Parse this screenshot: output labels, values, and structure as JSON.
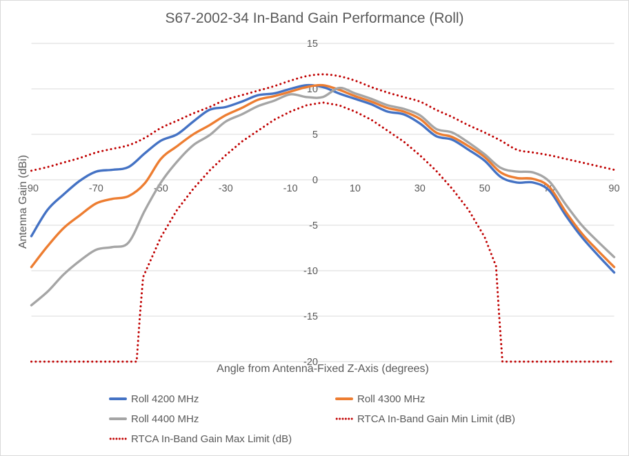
{
  "chart_data": {
    "type": "line",
    "title": "S67-2002-34 In-Band Gain Performance (Roll)",
    "xlabel": "Angle from Antenna-Fixed Z-Axis (degrees)",
    "ylabel": "Antenna Gain (dBi)",
    "xlim": [
      -90,
      90
    ],
    "ylim": [
      -20,
      15
    ],
    "x_ticks": [
      -90,
      -70,
      -50,
      -30,
      -10,
      10,
      30,
      50,
      70,
      90
    ],
    "y_ticks": [
      15,
      10,
      5,
      0,
      -5,
      -10,
      -15,
      -20
    ],
    "grid": "horizontal-only",
    "grid_color": "#d9d9d9",
    "text_color": "#595959",
    "legend_position": "bottom",
    "series": [
      {
        "id": "roll-4200",
        "name": "Roll 4200 MHz",
        "color": "#4472C4",
        "style": "solid",
        "smooth": true,
        "x": [
          -90,
          -85,
          -80,
          -75,
          -70,
          -65,
          -60,
          -55,
          -50,
          -45,
          -40,
          -35,
          -30,
          -25,
          -20,
          -15,
          -10,
          -5,
          0,
          5,
          10,
          15,
          20,
          25,
          30,
          35,
          40,
          45,
          50,
          55,
          60,
          65,
          70,
          75,
          80,
          85,
          90
        ],
        "y": [
          -6.2,
          -3.3,
          -1.6,
          -0.1,
          0.9,
          1.1,
          1.4,
          2.9,
          4.3,
          5.0,
          6.4,
          7.7,
          8.0,
          8.6,
          9.3,
          9.5,
          10.0,
          10.4,
          10.2,
          9.5,
          8.9,
          8.3,
          7.5,
          7.2,
          6.2,
          4.8,
          4.4,
          3.3,
          2.1,
          0.3,
          -0.3,
          -0.3,
          -1.2,
          -3.9,
          -6.3,
          -8.3,
          -10.2
        ]
      },
      {
        "id": "roll-4300",
        "name": "Roll 4300 MHz",
        "color": "#ED7D31",
        "style": "solid",
        "smooth": true,
        "x": [
          -90,
          -85,
          -80,
          -75,
          -70,
          -65,
          -60,
          -55,
          -50,
          -45,
          -40,
          -35,
          -30,
          -25,
          -20,
          -15,
          -10,
          -5,
          0,
          5,
          10,
          15,
          20,
          25,
          30,
          35,
          40,
          45,
          50,
          55,
          60,
          65,
          70,
          75,
          80,
          85,
          90
        ],
        "y": [
          -9.6,
          -7.3,
          -5.3,
          -3.9,
          -2.6,
          -2.1,
          -1.8,
          -0.4,
          2.3,
          3.7,
          5.0,
          6.0,
          7.1,
          7.9,
          8.8,
          9.2,
          9.7,
          10.2,
          10.4,
          9.9,
          9.2,
          8.6,
          7.9,
          7.5,
          6.7,
          5.2,
          4.7,
          3.7,
          2.5,
          0.8,
          0.2,
          0.1,
          -0.8,
          -3.5,
          -5.9,
          -7.8,
          -9.6
        ]
      },
      {
        "id": "roll-4400",
        "name": "Roll 4400 MHz",
        "color": "#A5A5A5",
        "style": "solid",
        "smooth": true,
        "x": [
          -90,
          -85,
          -80,
          -75,
          -70,
          -65,
          -60,
          -55,
          -50,
          -45,
          -40,
          -35,
          -30,
          -25,
          -20,
          -15,
          -10,
          -5,
          0,
          5,
          10,
          15,
          20,
          25,
          30,
          35,
          40,
          45,
          50,
          55,
          60,
          65,
          70,
          75,
          80,
          85,
          90
        ],
        "y": [
          -13.8,
          -12.3,
          -10.4,
          -8.9,
          -7.7,
          -7.4,
          -6.9,
          -3.4,
          -0.3,
          2.0,
          3.8,
          4.9,
          6.4,
          7.2,
          8.1,
          8.7,
          9.4,
          9.1,
          9.1,
          10.1,
          9.5,
          8.9,
          8.2,
          7.8,
          7.1,
          5.6,
          5.2,
          4.1,
          2.8,
          1.3,
          0.9,
          0.8,
          -0.2,
          -2.7,
          -5.0,
          -6.8,
          -8.5
        ]
      },
      {
        "id": "rtca-min-limit",
        "name": "RTCA In-Band Gain Min Limit (dB)",
        "color": "#C00000",
        "style": "dotted",
        "smooth": false,
        "x": [
          -90,
          -57.5,
          -56.5,
          -55.5,
          -55,
          -50,
          -45,
          -40,
          -35,
          -30,
          -25,
          -20,
          -15,
          -10,
          -5,
          0,
          5,
          10,
          15,
          20,
          25,
          30,
          35,
          40,
          45,
          50,
          53.5,
          54.5,
          55.5,
          90
        ],
        "y": [
          -20,
          -20,
          -15,
          -10.7,
          -10.3,
          -6.3,
          -3.3,
          -1.0,
          1.0,
          2.7,
          4.2,
          5.4,
          6.6,
          7.5,
          8.2,
          8.5,
          8.2,
          7.5,
          6.6,
          5.4,
          4.2,
          2.7,
          1.0,
          -1.0,
          -3.3,
          -6.3,
          -9.5,
          -15,
          -20,
          -20
        ]
      },
      {
        "id": "rtca-max-limit",
        "name": "RTCA In-Band Gain Max Limit (dB)",
        "color": "#C00000",
        "style": "dotted",
        "smooth": true,
        "x": [
          -90,
          -85,
          -80,
          -75,
          -70,
          -65,
          -60,
          -55,
          -50,
          -45,
          -40,
          -35,
          -30,
          -25,
          -20,
          -15,
          -10,
          -5,
          0,
          5,
          10,
          15,
          20,
          25,
          30,
          35,
          40,
          45,
          50,
          55,
          60,
          65,
          70,
          75,
          80,
          85,
          90
        ],
        "y": [
          1.0,
          1.4,
          1.9,
          2.4,
          3.0,
          3.4,
          3.8,
          4.6,
          5.7,
          6.5,
          7.3,
          8.0,
          8.8,
          9.3,
          9.8,
          10.3,
          10.9,
          11.4,
          11.6,
          11.4,
          10.9,
          10.2,
          9.6,
          9.1,
          8.6,
          7.7,
          6.9,
          6.0,
          5.2,
          4.3,
          3.3,
          3.0,
          2.7,
          2.3,
          1.9,
          1.5,
          1.1
        ]
      }
    ]
  }
}
